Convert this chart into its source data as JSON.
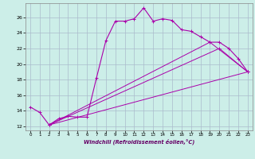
{
  "xlabel": "Windchill (Refroidissement éolien,°C)",
  "bg_color": "#cceee8",
  "grid_color": "#aabbcc",
  "line_color": "#aa00aa",
  "xlim": [
    -0.5,
    23.5
  ],
  "ylim": [
    11.5,
    27.8
  ],
  "xticks": [
    0,
    1,
    2,
    3,
    4,
    5,
    6,
    7,
    8,
    9,
    10,
    11,
    12,
    13,
    14,
    15,
    16,
    17,
    18,
    19,
    20,
    21,
    22,
    23
  ],
  "yticks": [
    12,
    14,
    16,
    18,
    20,
    22,
    24,
    26
  ],
  "curve1_x": [
    0,
    1,
    2,
    3,
    4,
    5,
    6,
    7,
    8,
    9,
    10,
    11,
    12,
    13,
    14,
    15,
    16,
    17,
    18,
    19,
    20,
    21,
    22,
    23
  ],
  "curve1_y": [
    14.5,
    13.8,
    12.2,
    13.0,
    13.3,
    13.2,
    13.2,
    18.2,
    23.0,
    25.5,
    25.5,
    25.8,
    27.2,
    25.5,
    25.8,
    25.6,
    24.4,
    24.2,
    23.5,
    22.8,
    22.8,
    22.0,
    20.7,
    19.0
  ],
  "line1_x": [
    2,
    23
  ],
  "line1_y": [
    12.2,
    19.0
  ],
  "line2_x": [
    2,
    20,
    23
  ],
  "line2_y": [
    12.2,
    22.0,
    19.0
  ],
  "line3_x": [
    2,
    19,
    23
  ],
  "line3_y": [
    12.2,
    22.8,
    19.0
  ]
}
